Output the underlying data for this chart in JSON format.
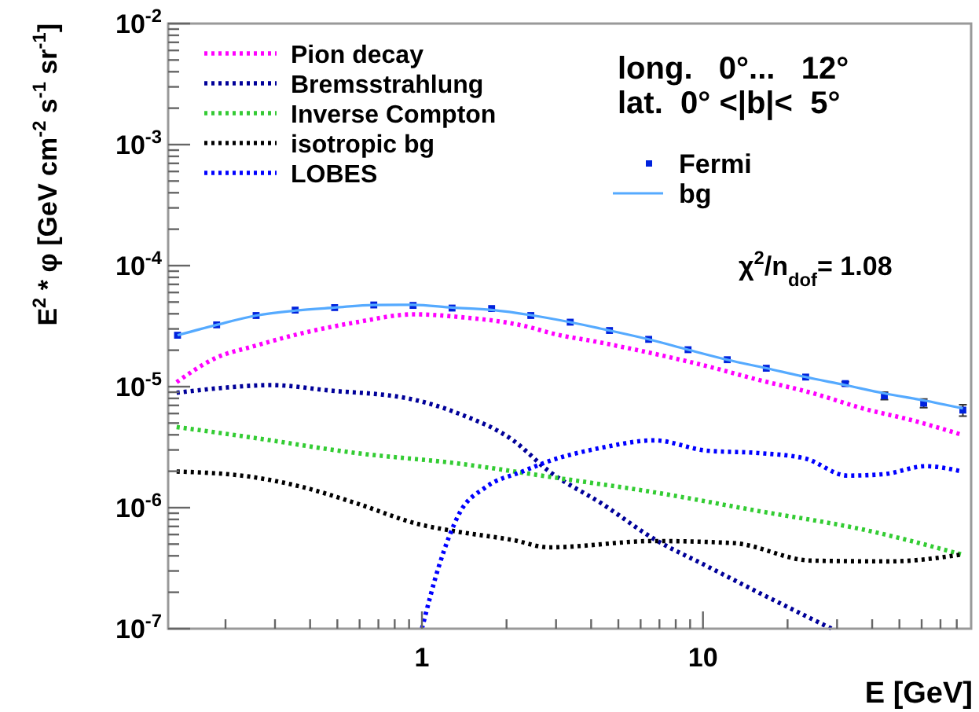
{
  "chart_data": {
    "type": "line",
    "xlabel": "E [GeV]",
    "ylabel": "E$^{2}$ * φ  [GeV cm$^{-2}$ s$^{-1}$ sr$^{-1}$]",
    "log": "xy",
    "legend": "top",
    "xlim": [
      0.125,
      90
    ],
    "ylim": [
      1e-07,
      0.01
    ],
    "xticks": [
      {
        "value": 0.2,
        "label": null
      },
      {
        "value": 0.3,
        "label": null
      },
      {
        "value": 0.4,
        "label": null
      },
      {
        "value": 0.5,
        "label": null
      },
      {
        "value": 0.6,
        "label": null
      },
      {
        "value": 0.7,
        "label": null
      },
      {
        "value": 0.8,
        "label": null
      },
      {
        "value": 0.9,
        "label": null
      },
      1,
      {
        "value": 2,
        "label": null
      },
      {
        "value": 3,
        "label": null
      },
      {
        "value": 4,
        "label": null
      },
      {
        "value": 5,
        "label": null
      },
      {
        "value": 6,
        "label": null
      },
      {
        "value": 7,
        "label": null
      },
      {
        "value": 8,
        "label": null
      },
      {
        "value": 9,
        "label": null
      },
      10,
      {
        "value": 20,
        "label": null
      },
      {
        "value": 30,
        "label": null
      },
      {
        "value": 40,
        "label": null
      },
      {
        "value": 50,
        "label": null
      },
      {
        "value": 60,
        "label": null
      },
      {
        "value": 70,
        "label": null
      },
      {
        "value": 80,
        "label": null
      }
    ],
    "yticks": [
      {
        "value": 1e-07,
        "label": "10$^{-7}$"
      },
      {
        "value": 2e-07,
        "label": null
      },
      {
        "value": 3e-07,
        "label": null
      },
      {
        "value": 4e-07,
        "label": null
      },
      {
        "value": 5e-07,
        "label": null
      },
      {
        "value": 6e-07,
        "label": null
      },
      {
        "value": 7e-07,
        "label": null
      },
      {
        "value": 8e-07,
        "label": null
      },
      {
        "value": 9e-07,
        "label": null
      },
      {
        "value": 1e-06,
        "label": "10$^{-6}$"
      },
      {
        "value": 2e-06,
        "label": null
      },
      {
        "value": 3e-06,
        "label": null
      },
      {
        "value": 4e-06,
        "label": null
      },
      {
        "value": 5e-06,
        "label": null
      },
      {
        "value": 6e-06,
        "label": null
      },
      {
        "value": 7e-06,
        "label": null
      },
      {
        "value": 8e-06,
        "label": null
      },
      {
        "value": 9e-06,
        "label": null
      },
      {
        "value": 1e-05,
        "label": "10$^{-5}$"
      },
      {
        "value": 2e-05,
        "label": null
      },
      {
        "value": 3e-05,
        "label": null
      },
      {
        "value": 4e-05,
        "label": null
      },
      {
        "value": 5e-05,
        "label": null
      },
      {
        "value": 6e-05,
        "label": null
      },
      {
        "value": 7e-05,
        "label": null
      },
      {
        "value": 8e-05,
        "label": null
      },
      {
        "value": 9e-05,
        "label": null
      },
      {
        "value": 0.0001,
        "label": "10$^{-4}$"
      },
      {
        "value": 0.0002,
        "label": null
      },
      {
        "value": 0.0003,
        "label": null
      },
      {
        "value": 0.0004,
        "label": null
      },
      {
        "value": 0.0005,
        "label": null
      },
      {
        "value": 0.0006,
        "label": null
      },
      {
        "value": 0.0007,
        "label": null
      },
      {
        "value": 0.0008,
        "label": null
      },
      {
        "value": 0.0009,
        "label": null
      },
      {
        "value": 0.001,
        "label": "10$^{-3}$"
      },
      {
        "value": 0.002,
        "label": null
      },
      {
        "value": 0.003,
        "label": null
      },
      {
        "value": 0.004,
        "label": null
      },
      {
        "value": 0.005,
        "label": null
      },
      {
        "value": 0.006,
        "label": null
      },
      {
        "value": 0.007,
        "label": null
      },
      {
        "value": 0.008,
        "label": null
      },
      {
        "value": 0.009,
        "label": null
      },
      {
        "value": 0.01,
        "label": "10$^{-2}$"
      }
    ],
    "annotations": [
      "long.   0°...   12°",
      "lat.  0° <|b|<  5°",
      "χ$^{2}$/n$_{dof}$= 1.08"
    ],
    "series": [
      {
        "name": "Pion decay",
        "color": "#ff00ff",
        "line_style": "dotted",
        "x": [
          0.134,
          0.183,
          0.256,
          0.376,
          0.582,
          0.94,
          1.36,
          2.43,
          2.84,
          4.34,
          6.71,
          10.3,
          15.7,
          24.3,
          37.1,
          56.8,
          83.5
        ],
        "values": [
          1.09e-05,
          1.71e-05,
          2.18e-05,
          2.77e-05,
          3.4e-05,
          3.96e-05,
          3.76e-05,
          3.09e-05,
          2.79e-05,
          2.31e-05,
          1.87e-05,
          1.48e-05,
          1.14e-05,
          8.9e-06,
          6.6e-06,
          5.2e-06,
          4e-06
        ]
      },
      {
        "name": "Bremsstrahlung",
        "color": "#000099",
        "line_style": "dotted",
        "x": [
          0.134,
          0.198,
          0.291,
          0.468,
          0.89,
          1.36,
          2.11,
          2.84,
          4.34,
          6.71,
          10.3,
          15.7,
          28.7
        ],
        "values": [
          8.9e-06,
          9.8e-06,
          1.03e-05,
          9.3e-06,
          8e-06,
          5.96e-06,
          3.6e-06,
          1.99e-06,
          1.09e-06,
          5.5e-07,
          3.3e-07,
          2e-07,
          1e-07
        ]
      },
      {
        "name": "Inverse Compton",
        "color": "#33cc33",
        "line_style": "dotted",
        "x": [
          0.134,
          0.246,
          0.582,
          1.36,
          2.84,
          6.71,
          15.7,
          37.1,
          83.5
        ],
        "values": [
          4.64e-06,
          3.81e-06,
          2.83e-06,
          2.31e-06,
          1.8e-06,
          1.34e-06,
          9.4e-07,
          6.6e-07,
          4.1e-07
        ]
      },
      {
        "name": "isotropic bg",
        "color": "#000000",
        "line_style": "dotted",
        "x": [
          0.134,
          0.246,
          0.376,
          0.582,
          0.975,
          1.36,
          2.11,
          2.84,
          6.71,
          12.8,
          24.3,
          46.2,
          83.5
        ],
        "values": [
          1.99e-06,
          1.8e-06,
          1.48e-06,
          1.09e-06,
          7.3e-07,
          6.3e-07,
          5.4e-07,
          4.7e-07,
          5.3e-07,
          5.1e-07,
          3.65e-07,
          3.6e-07,
          4.1e-07
        ]
      },
      {
        "name": "LOBES",
        "color": "#0000ff",
        "line_style": "dotted",
        "x": [
          1.0,
          1.15,
          1.36,
          1.69,
          2.28,
          2.84,
          4.34,
          6.71,
          10.3,
          15.7,
          23.1,
          32.7,
          43.9,
          62.1,
          83.5
        ],
        "values": [
          1e-07,
          3.3e-07,
          9e-07,
          1.48e-06,
          1.99e-06,
          2.43e-06,
          3.12e-06,
          3.6e-06,
          2.96e-06,
          2.83e-06,
          2.55e-06,
          1.84e-06,
          1.89e-06,
          2.2e-06,
          1.99e-06
        ]
      },
      {
        "name": "Fermi",
        "type": "scatter",
        "marker": "square",
        "color": "#0022dd",
        "x": [
          0.135,
          0.186,
          0.257,
          0.354,
          0.489,
          0.674,
          0.93,
          1.28,
          1.77,
          2.44,
          3.37,
          4.65,
          6.41,
          8.85,
          12.2,
          16.8,
          23.2,
          32.1,
          44.2,
          61.0,
          84.1
        ],
        "values": [
          2.66e-05,
          3.24e-05,
          3.87e-05,
          4.29e-05,
          4.5e-05,
          4.73e-05,
          4.69e-05,
          4.46e-05,
          4.42e-05,
          3.87e-05,
          3.41e-05,
          2.91e-05,
          2.46e-05,
          2.02e-05,
          1.67e-05,
          1.42e-05,
          1.2e-05,
          1.06e-05,
          8.4e-06,
          7.3e-06,
          6.4e-06
        ],
        "errors": [
          null,
          null,
          null,
          null,
          null,
          null,
          null,
          null,
          null,
          null,
          null,
          null,
          null,
          null,
          null,
          null,
          null,
          4e-07,
          6e-07,
          6e-07,
          7e-07
        ]
      },
      {
        "name": "bg",
        "color": "#55aaff",
        "line_style": "solid",
        "x": [
          0.135,
          0.186,
          0.257,
          0.354,
          0.489,
          0.674,
          0.93,
          1.28,
          1.77,
          2.44,
          3.37,
          4.65,
          6.41,
          8.85,
          12.2,
          16.8,
          23.2,
          32.1,
          44.2,
          61.0,
          84.1
        ],
        "values": [
          2.66e-05,
          3.24e-05,
          3.87e-05,
          4.25e-05,
          4.5e-05,
          4.73e-05,
          4.75e-05,
          4.5e-05,
          4.3e-05,
          3.9e-05,
          3.41e-05,
          2.91e-05,
          2.46e-05,
          2.02e-05,
          1.67e-05,
          1.42e-05,
          1.2e-05,
          1.03e-05,
          8.8e-06,
          7.7e-06,
          6.6e-06
        ]
      }
    ]
  }
}
